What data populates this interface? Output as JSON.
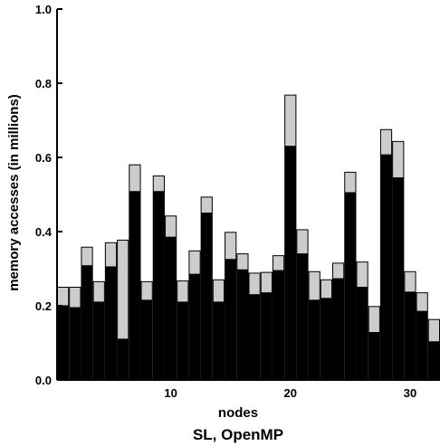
{
  "chart_data": {
    "type": "bar",
    "stacked": true,
    "xlabel": "nodes",
    "ylabel": "memory accesses (in millions)",
    "caption": "SL, OpenMP",
    "ylim": [
      0.0,
      1.0
    ],
    "xlim": [
      0.5,
      32.5
    ],
    "y_ticks": [
      "0.0",
      "0.2",
      "0.4",
      "0.6",
      "0.8",
      "1.0"
    ],
    "y_tick_values": [
      0.0,
      0.2,
      0.4,
      0.6,
      0.8,
      1.0
    ],
    "x_ticks": [
      "10",
      "20",
      "30"
    ],
    "x_tick_values": [
      10,
      20,
      30
    ],
    "x": [
      1,
      2,
      3,
      4,
      5,
      6,
      7,
      8,
      9,
      10,
      11,
      12,
      13,
      14,
      15,
      16,
      17,
      18,
      19,
      20,
      21,
      22,
      23,
      24,
      25,
      26,
      27,
      28,
      29,
      30,
      31,
      32
    ],
    "series": [
      {
        "color": "#000000",
        "values": [
          0.2,
          0.195,
          0.308,
          0.21,
          0.305,
          0.11,
          0.508,
          0.215,
          0.508,
          0.385,
          0.21,
          0.285,
          0.45,
          0.21,
          0.325,
          0.297,
          0.23,
          0.235,
          0.295,
          0.63,
          0.34,
          0.215,
          0.22,
          0.273,
          0.505,
          0.25,
          0.128,
          0.607,
          0.545,
          0.237,
          0.185,
          0.103
        ]
      },
      {
        "color": "#cccccc",
        "values": [
          0.05,
          0.055,
          0.05,
          0.055,
          0.065,
          0.267,
          0.072,
          0.05,
          0.042,
          0.057,
          0.057,
          0.063,
          0.043,
          0.06,
          0.073,
          0.043,
          0.058,
          0.055,
          0.04,
          0.138,
          0.065,
          0.077,
          0.05,
          0.042,
          0.055,
          0.068,
          0.07,
          0.068,
          0.098,
          0.055,
          0.05,
          0.06
        ]
      }
    ],
    "grid": false,
    "legend": "none"
  }
}
